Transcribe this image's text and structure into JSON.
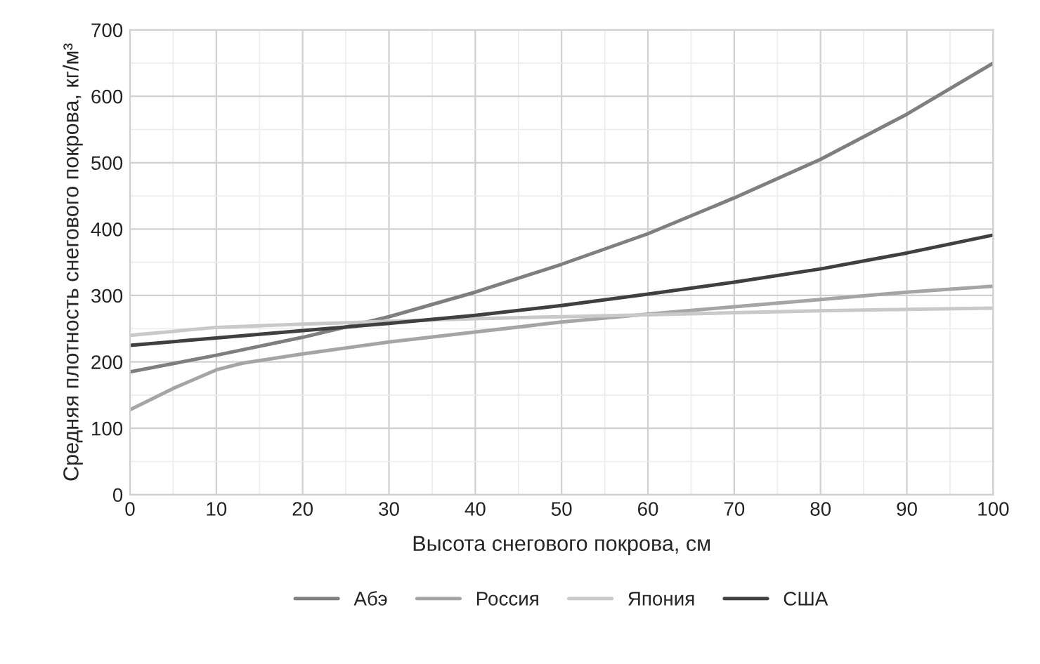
{
  "chart_data": {
    "type": "line",
    "xlabel": "Высота снегового покрова, см",
    "ylabel": "Средняя плотность снегового покрова, кг/м³",
    "xlim": [
      0,
      100
    ],
    "xticks": [
      0,
      10,
      20,
      30,
      40,
      50,
      60,
      70,
      80,
      90,
      100
    ],
    "ylim": [
      0,
      700
    ],
    "yticks": [
      0,
      100,
      200,
      300,
      400,
      500,
      600,
      700
    ],
    "grid": true,
    "legend": "bottom",
    "marker": "none",
    "line_style": "solid",
    "series": [
      {
        "name": "Абэ",
        "color": "#7f7f7f",
        "x": [
          0,
          10,
          20,
          30,
          40,
          50,
          60,
          70,
          80,
          90,
          100
        ],
        "values": [
          185,
          210,
          237,
          268,
          305,
          347,
          393,
          447,
          505,
          573,
          650
        ]
      },
      {
        "name": "Россия",
        "color": "#a5a5a5",
        "x": [
          0,
          5,
          10,
          13,
          20,
          30,
          40,
          50,
          60,
          70,
          80,
          90,
          100
        ],
        "values": [
          128,
          160,
          188,
          198,
          212,
          230,
          245,
          260,
          272,
          283,
          294,
          305,
          314
        ]
      },
      {
        "name": "Япония",
        "color": "#c9c9c9",
        "x": [
          0,
          10,
          20,
          30,
          40,
          50,
          60,
          70,
          80,
          90,
          100
        ],
        "values": [
          240,
          252,
          257,
          261,
          265,
          268,
          271,
          274,
          277,
          279,
          281
        ]
      },
      {
        "name": "США",
        "color": "#404040",
        "x": [
          0,
          10,
          20,
          30,
          40,
          50,
          60,
          70,
          80,
          90,
          100
        ],
        "values": [
          225,
          236,
          247,
          258,
          270,
          285,
          302,
          320,
          340,
          364,
          391
        ]
      }
    ]
  }
}
